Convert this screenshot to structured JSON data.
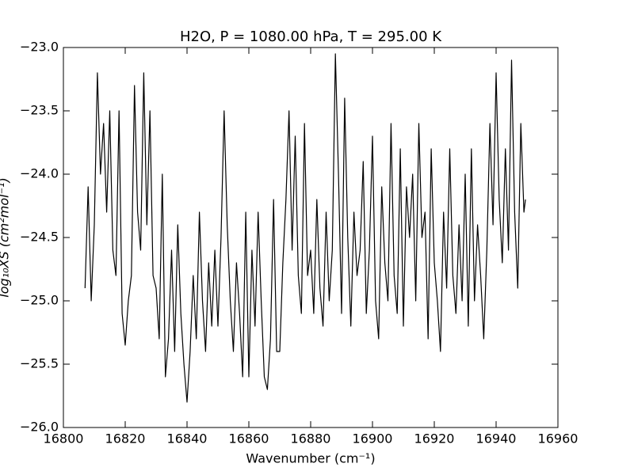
{
  "chart_data": {
    "type": "line",
    "title": "H2O, P = 1080.00 hPa, T = 295.00 K",
    "x_label": "Wavenumber (cm⁻¹)",
    "y_label": "log₁₀XS (cm²mol⁻¹)",
    "x": [
      16807,
      16808,
      16809,
      16810,
      16811,
      16812,
      16813,
      16814,
      16815,
      16816,
      16817,
      16818,
      16819,
      16820,
      16821,
      16822,
      16823,
      16824,
      16825,
      16826,
      16827,
      16828,
      16829,
      16830,
      16831,
      16832,
      16833,
      16834,
      16835,
      16836,
      16837,
      16838,
      16839,
      16840,
      16841,
      16842,
      16843,
      16844,
      16845,
      16846,
      16847,
      16848,
      16849,
      16850,
      16851,
      16852,
      16853,
      16854,
      16855,
      16856,
      16857,
      16858,
      16859,
      16860,
      16861,
      16862,
      16863,
      16864,
      16865,
      16866,
      16867,
      16868,
      16869,
      16870,
      16871,
      16872,
      16873,
      16874,
      16875,
      16876,
      16877,
      16878,
      16879,
      16880,
      16881,
      16882,
      16883,
      16884,
      16885,
      16886,
      16887,
      16888,
      16889,
      16890,
      16891,
      16892,
      16893,
      16894,
      16895,
      16896,
      16897,
      16898,
      16899,
      16900,
      16901,
      16902,
      16903,
      16904,
      16905,
      16906,
      16907,
      16908,
      16909,
      16910,
      16911,
      16912,
      16913,
      16914,
      16915,
      16916,
      16917,
      16918,
      16919,
      16920,
      16921,
      16922,
      16923,
      16924,
      16925,
      16926,
      16927,
      16928,
      16929,
      16930,
      16931,
      16932,
      16933,
      16934,
      16935,
      16936,
      16937,
      16938,
      16939,
      16940,
      16941,
      16942,
      16943,
      16944,
      16945,
      16946,
      16947,
      16948,
      16949,
      16949.5
    ],
    "values": [
      -24.9,
      -24.1,
      -25.0,
      -24.4,
      -23.2,
      -24.0,
      -23.6,
      -24.3,
      -23.5,
      -24.6,
      -24.8,
      -23.5,
      -25.1,
      -25.35,
      -25.0,
      -24.8,
      -23.3,
      -24.3,
      -24.6,
      -23.2,
      -24.4,
      -23.5,
      -24.8,
      -24.9,
      -25.3,
      -24.0,
      -25.6,
      -25.3,
      -24.6,
      -25.4,
      -24.4,
      -25.1,
      -25.5,
      -25.8,
      -25.4,
      -24.8,
      -25.3,
      -24.3,
      -25.0,
      -25.4,
      -24.7,
      -25.2,
      -24.6,
      -25.2,
      -24.5,
      -23.5,
      -24.4,
      -25.0,
      -25.4,
      -24.7,
      -25.1,
      -25.6,
      -24.3,
      -25.6,
      -24.6,
      -25.2,
      -24.3,
      -25.0,
      -25.6,
      -25.7,
      -25.3,
      -24.2,
      -25.4,
      -25.4,
      -24.7,
      -24.2,
      -23.5,
      -24.6,
      -23.7,
      -24.8,
      -25.1,
      -23.6,
      -24.8,
      -24.6,
      -25.1,
      -24.2,
      -24.9,
      -25.2,
      -24.3,
      -25.0,
      -24.6,
      -23.05,
      -24.0,
      -25.1,
      -23.4,
      -24.5,
      -25.2,
      -24.3,
      -24.8,
      -24.6,
      -23.9,
      -25.1,
      -24.6,
      -23.7,
      -25.0,
      -25.3,
      -24.1,
      -24.7,
      -25.0,
      -23.6,
      -24.8,
      -25.1,
      -23.8,
      -25.2,
      -24.1,
      -24.5,
      -24.0,
      -25.0,
      -23.6,
      -24.5,
      -24.3,
      -25.3,
      -23.8,
      -24.7,
      -25.0,
      -25.4,
      -24.3,
      -24.9,
      -23.8,
      -24.8,
      -25.1,
      -24.4,
      -25.0,
      -24.0,
      -25.2,
      -23.8,
      -25.0,
      -24.4,
      -24.8,
      -25.3,
      -24.6,
      -23.6,
      -24.4,
      -23.2,
      -24.2,
      -24.7,
      -23.8,
      -24.6,
      -23.1,
      -24.3,
      -24.9,
      -23.6,
      -24.3,
      -24.2
    ],
    "color": "#000000",
    "xlim": [
      16800,
      16960
    ],
    "xticks": [
      16800,
      16820,
      16840,
      16860,
      16880,
      16900,
      16920,
      16940,
      16960
    ],
    "ylim": [
      -26,
      -23
    ],
    "yticks": [
      {
        "value": -26,
        "label": "−26.0"
      },
      {
        "value": -25.5,
        "label": "−25.5"
      },
      {
        "value": -25,
        "label": "−25.0"
      },
      {
        "value": -24.5,
        "label": "−24.5"
      },
      {
        "value": -24,
        "label": "−24.0"
      },
      {
        "value": -23.5,
        "label": "−23.5"
      },
      {
        "value": -23,
        "label": "−23.0"
      }
    ]
  }
}
